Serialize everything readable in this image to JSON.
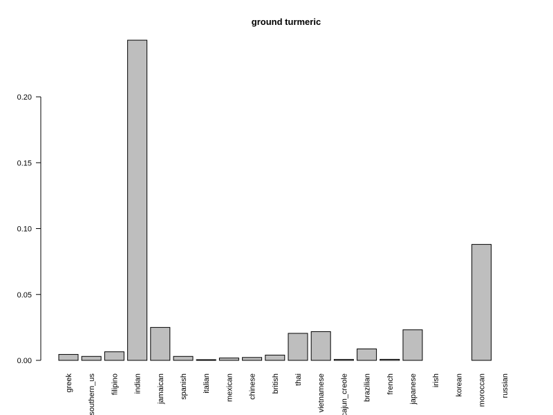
{
  "chart_data": {
    "type": "bar",
    "title": "ground turmeric",
    "xlabel": "",
    "ylabel": "",
    "ylim": [
      0,
      0.25
    ],
    "yticks": [
      "0.00",
      "0.05",
      "0.10",
      "0.15",
      "0.20"
    ],
    "yticks_values": [
      0,
      0.05,
      0.1,
      0.15,
      0.2
    ],
    "categories": [
      "greek",
      "southern_us",
      "filipino",
      "indian",
      "jamaican",
      "spanish",
      "italian",
      "mexican",
      "chinese",
      "british",
      "thai",
      "vietnamese",
      "cajun_creole",
      "brazilian",
      "french",
      "japanese",
      "irish",
      "korean",
      "moroccan",
      "russian"
    ],
    "values": [
      0.0045,
      0.003,
      0.0065,
      0.243,
      0.025,
      0.003,
      0.0003,
      0.0018,
      0.0022,
      0.004,
      0.0205,
      0.0218,
      0.0007,
      0.0087,
      0.0008,
      0.0232,
      0,
      0,
      0.088,
      0
    ],
    "bar_fill": "#bebebe",
    "grid": false,
    "legend": "none"
  }
}
